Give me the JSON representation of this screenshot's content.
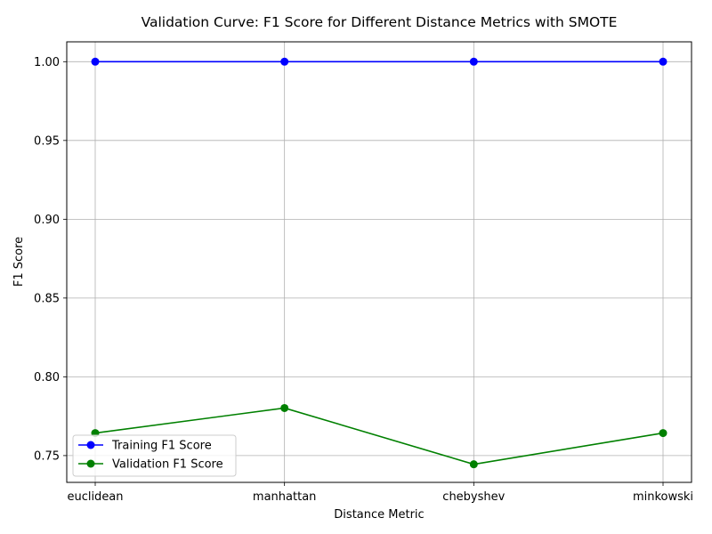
{
  "chart_data": {
    "type": "line",
    "title": "Validation Curve: F1 Score for Different Distance Metrics with SMOTE",
    "xlabel": "Distance Metric",
    "ylabel": "F1 Score",
    "categories": [
      "euclidean",
      "manhattan",
      "chebyshev",
      "minkowski"
    ],
    "series": [
      {
        "name": "Training F1 Score",
        "color": "#0000ff",
        "marker": "circle",
        "values": [
          1.0,
          1.0,
          1.0,
          1.0
        ]
      },
      {
        "name": "Validation F1 Score",
        "color": "#008000",
        "marker": "circle",
        "values": [
          0.7643,
          0.7802,
          0.7445,
          0.7643
        ]
      }
    ],
    "ylim": [
      0.733,
      1.0126
    ],
    "yticks": [
      0.75,
      0.8,
      0.85,
      0.9,
      0.95,
      1.0
    ],
    "ytick_labels": [
      "0.75",
      "0.80",
      "0.85",
      "0.90",
      "0.95",
      "1.00"
    ],
    "grid": true,
    "legend_position": "lower-left",
    "grid_color": "#b0b0b0"
  }
}
